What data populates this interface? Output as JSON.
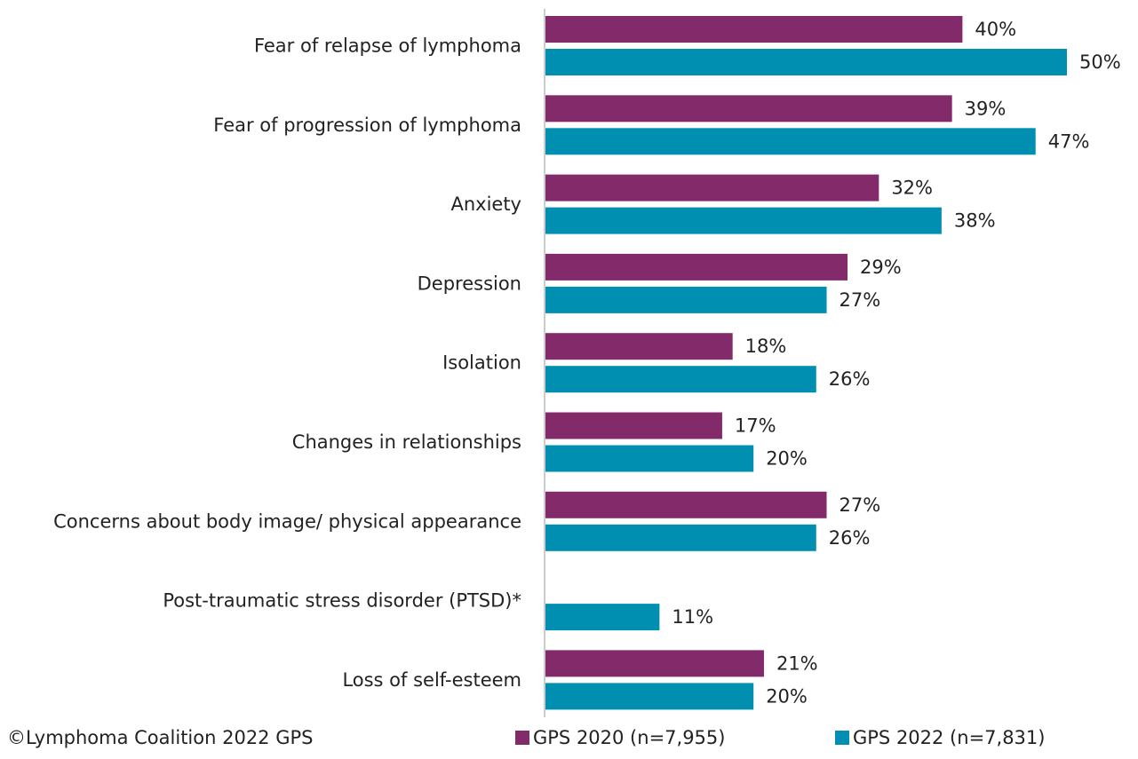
{
  "chart_data": {
    "type": "bar",
    "orientation": "horizontal",
    "categories": [
      "Fear of relapse of lymphoma",
      "Fear of progression of lymphoma",
      "Anxiety",
      "Depression",
      "Isolation",
      "Changes in relationships",
      "Concerns about body image/ physical appearance",
      "Post-traumatic stress disorder (PTSD)*",
      "Loss of self-esteem"
    ],
    "series": [
      {
        "name": "GPS 2020 (n=7,955)",
        "color": "#832a6a",
        "values": [
          40,
          39,
          32,
          29,
          18,
          17,
          27,
          null,
          21
        ],
        "value_labels": [
          "40%",
          "39%",
          "32%",
          "29%",
          "18%",
          "17%",
          "27%",
          null,
          "21%"
        ]
      },
      {
        "name": "GPS 2022 (n=7,831)",
        "color": "#008fb0",
        "values": [
          50,
          47,
          38,
          27,
          26,
          20,
          26,
          11,
          20
        ],
        "value_labels": [
          "50%",
          "47%",
          "38%",
          "27%",
          "26%",
          "20%",
          "26%",
          "11%",
          "20%"
        ]
      }
    ],
    "xlim": [
      0,
      50
    ],
    "source": "©Lymphoma Coalition 2022 GPS"
  }
}
